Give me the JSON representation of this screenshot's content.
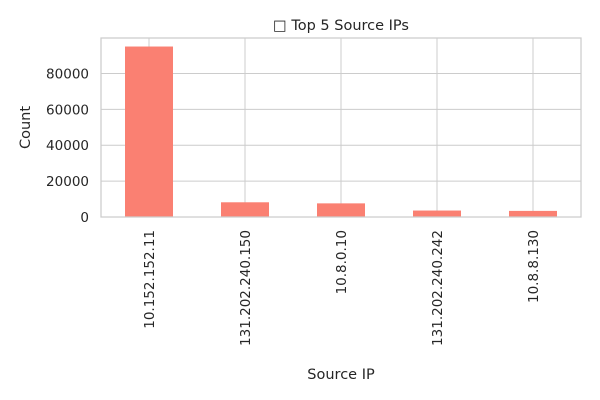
{
  "chart_data": {
    "type": "bar",
    "title": "□ Top 5 Source IPs",
    "xlabel": "Source IP",
    "ylabel": "Count",
    "categories": [
      "10.152.152.11",
      "131.202.240.150",
      "10.8.0.10",
      "131.202.240.242",
      "10.8.8.130"
    ],
    "values": [
      95000,
      8200,
      7600,
      3600,
      3400
    ],
    "ylim": [
      0,
      99750
    ],
    "yticks": [
      0,
      20000,
      40000,
      60000,
      80000
    ],
    "ytick_labels": [
      "0",
      "20000",
      "40000",
      "60000",
      "80000"
    ],
    "grid": true,
    "bar_color": "#fa8072"
  }
}
